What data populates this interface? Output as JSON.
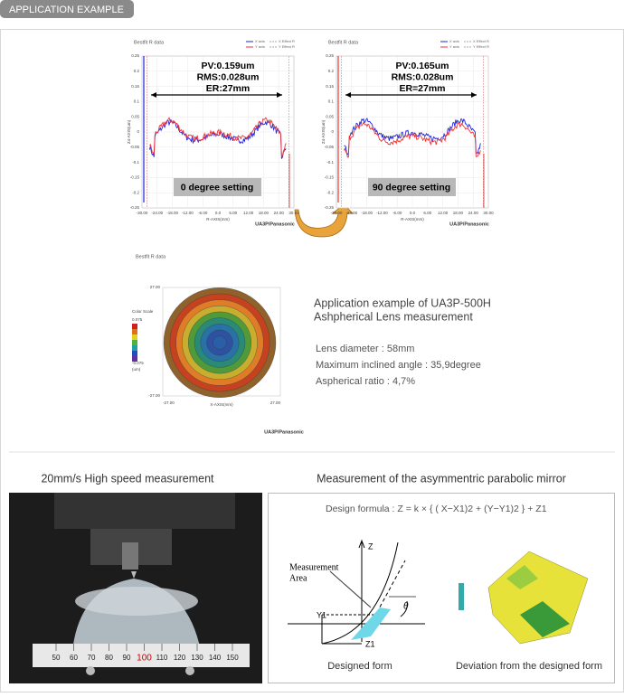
{
  "header": {
    "tab": "APPLICATION EXAMPLE"
  },
  "charts": [
    {
      "title": "Bestfit R data",
      "legend": [
        "X axis",
        "Y axis",
        "X Effect R",
        "Y Effect R"
      ],
      "stats": [
        "PV:0.159um",
        "RMS:0.028um",
        "ER:27mm"
      ],
      "setting": "0 degree setting",
      "yticks": [
        "0.25",
        "0.2",
        "0.15",
        "0.1",
        "0.05",
        "0",
        "-0.05",
        "-0.1",
        "-0.15",
        "-0.2",
        "-0.25"
      ],
      "xticks": [
        "-30.00",
        "-24.00",
        "-18.00",
        "-12.00",
        "-6.00",
        "0.0",
        "6.00",
        "12.00",
        "18.00",
        "24.00",
        "30.00"
      ],
      "xlabel": "R-AXIS(mm)",
      "ylabel": "Z4-AXIS(um)",
      "brand": "UA3P/Panasonic"
    },
    {
      "title": "Bestfit R data",
      "legend": [
        "X axis",
        "Y axis",
        "X Effect R",
        "Y Effect R"
      ],
      "stats": [
        "PV:0.165um",
        "RMS:0.028um",
        "ER=27mm"
      ],
      "setting": "90 degree setting",
      "yticks": [
        "0.25",
        "0.2",
        "0.15",
        "0.1",
        "0.05",
        "0",
        "-0.05",
        "-0.1",
        "-0.15",
        "-0.2",
        "-0.25"
      ],
      "xticks": [
        "-30.00",
        "-24.00",
        "-18.00",
        "-12.00",
        "-6.00",
        "0.0",
        "6.00",
        "12.00",
        "18.00",
        "24.00",
        "30.00"
      ],
      "xlabel": "R-AXIS(mm)",
      "ylabel": "Z4-AXIS(um)",
      "brand": "UA3P/Panasonic"
    }
  ],
  "map": {
    "title": "Bestfit R data",
    "scale_title": "Color Scale",
    "scale_max": "0.075",
    "scale_min": "-0.075",
    "scale_unit": "(um)",
    "y_top": "27.00",
    "y_bottom": "-27.00",
    "x_left": "-27.00",
    "x_right": "27.00",
    "xlabel": "X-AXIS(mm)",
    "brand": "UA3P/Panasonic"
  },
  "description": {
    "title": [
      "Application example of UA3P-500H",
      "Ashpherical Lens measurement"
    ],
    "specs": [
      "Lens diameter : 58mm",
      "Maximum inclined angle : 35,9degree",
      "Aspherical ratio : 4,7%"
    ]
  },
  "bottom": {
    "left_title": "20mm/s High speed measurement",
    "ruler": [
      "50",
      "60",
      "70",
      "80",
      "90",
      "100",
      "110",
      "120",
      "130",
      "140",
      "150"
    ],
    "right_title": "Measurement of  the asymmentric parabolic mirror",
    "formula": "Design formula : Z = k  × { ( X−X1)2 + (Y−Y1)2 }  +  Z1",
    "diagram": {
      "z": "Z",
      "area": [
        "Measurement",
        "Area"
      ],
      "y1": "Y1",
      "z1": "Z1",
      "theta": "θ"
    },
    "captions": [
      "Designed form",
      "Deviation from the designed form"
    ]
  }
}
